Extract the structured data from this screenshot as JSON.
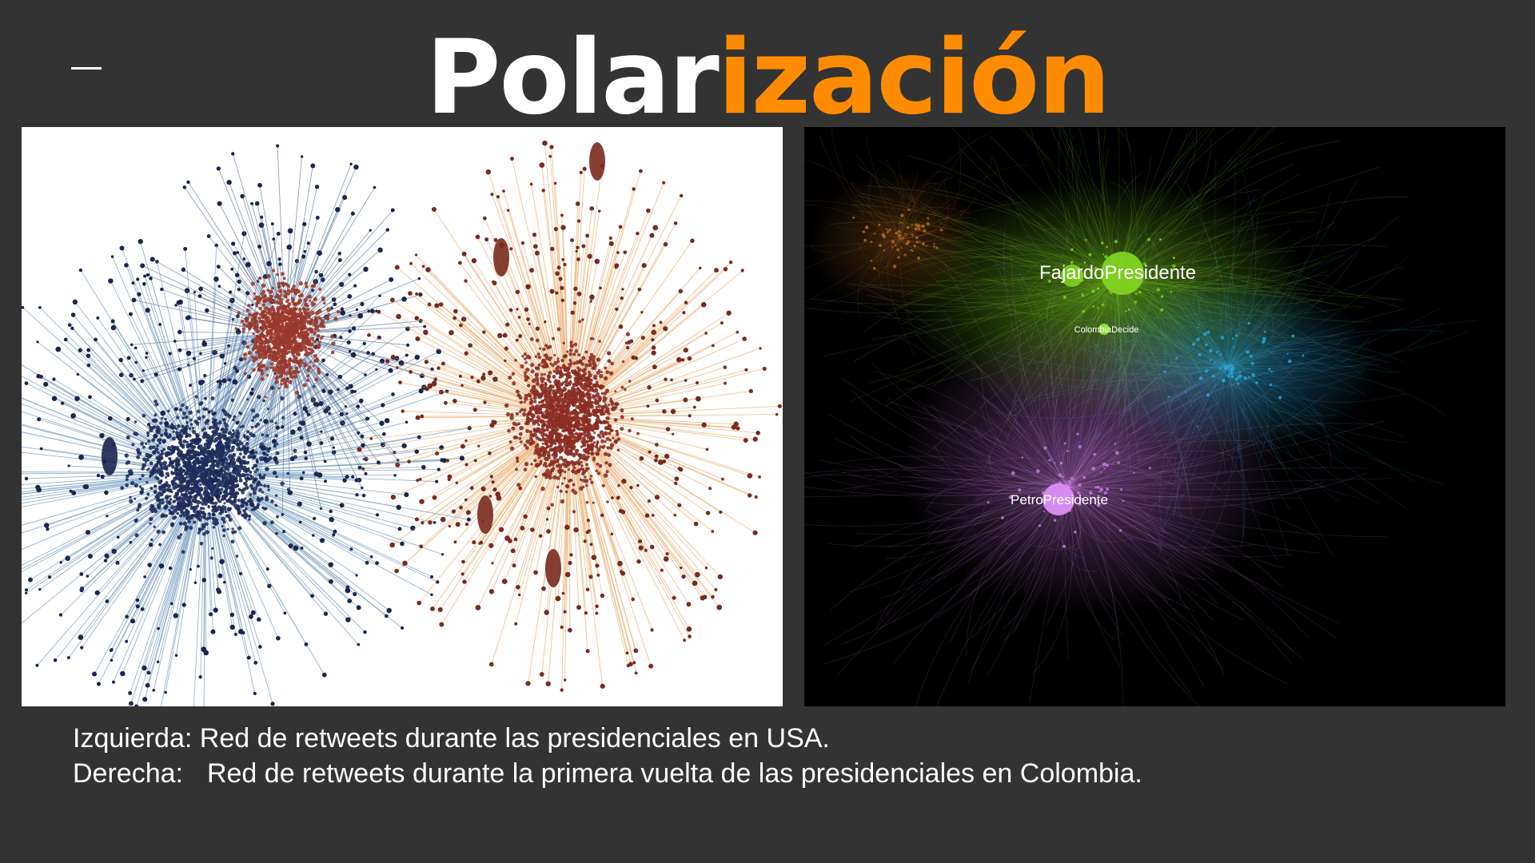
{
  "slide": {
    "title_part1": "Polar",
    "title_part2": "ización",
    "colors": {
      "background": "#333333",
      "title_white": "#ffffff",
      "title_accent": "#ff8c00"
    }
  },
  "left_figure": {
    "description_colors": {
      "cluster_blue": "#1f2d5c",
      "cluster_red": "#9a3a2c",
      "cluster_orange": "#e8a25a"
    }
  },
  "right_figure": {
    "labels": [
      {
        "text": "FajardoPresidente"
      },
      {
        "text": "ColombiaDecide"
      },
      {
        "text": "PetroPresidente"
      }
    ],
    "colors": {
      "green": "#7fd321",
      "blue": "#2aa6d9",
      "purple": "#c77be0"
    }
  },
  "caption": {
    "line1": "Izquierda: Red de retweets durante las presidenciales en USA.",
    "line2_label": "Derecha:",
    "line2_text": "Red de retweets durante la primera vuelta de las presidenciales en Colombia."
  }
}
